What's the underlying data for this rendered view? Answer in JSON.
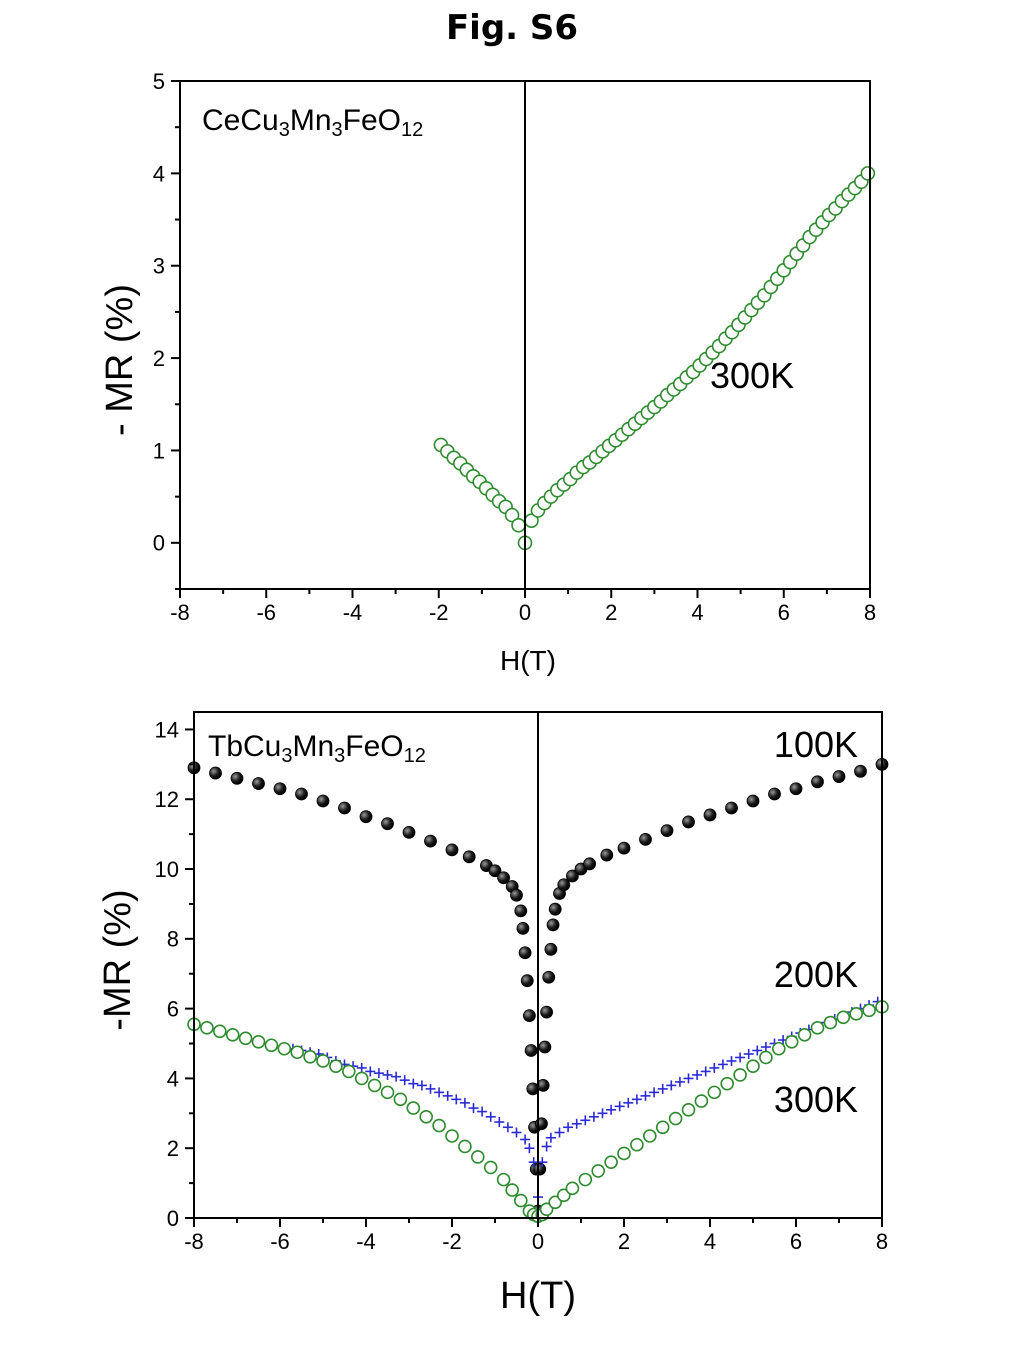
{
  "figure": {
    "title": "Fig. S6"
  },
  "chart_data": [
    {
      "type": "scatter",
      "xlabel": "H(T)",
      "ylabel": "- MR (%)",
      "xlim": [
        -8,
        8
      ],
      "ylim": [
        -0.5,
        5
      ],
      "xticks": [
        "-8",
        "-6",
        "-4",
        "-2",
        "0",
        "2",
        "4",
        "6",
        "8"
      ],
      "yticks": [
        "0",
        "1",
        "2",
        "3",
        "4",
        "5"
      ],
      "sample": {
        "base": "CeCu",
        "s1": "3",
        "mid1": "Mn",
        "s2": "3",
        "mid2": "FeO",
        "s3": "12"
      },
      "annotations": [
        "300K"
      ],
      "colors": {
        "green": "#2e8b2e"
      },
      "series": [
        {
          "label": "300K",
          "marker": "open-circle",
          "color": "#2e8b2e",
          "x": [
            -1.95,
            -1.8,
            -1.65,
            -1.5,
            -1.35,
            -1.2,
            -1.05,
            -0.9,
            -0.75,
            -0.6,
            -0.45,
            -0.3,
            -0.15,
            0,
            0.15,
            0.3,
            0.45,
            0.6,
            0.75,
            0.9,
            1.05,
            1.2,
            1.35,
            1.5,
            1.65,
            1.8,
            1.95,
            2.1,
            2.25,
            2.4,
            2.55,
            2.7,
            2.85,
            3.0,
            3.15,
            3.3,
            3.45,
            3.6,
            3.75,
            3.9,
            4.05,
            4.2,
            4.35,
            4.5,
            4.65,
            4.8,
            4.95,
            5.1,
            5.25,
            5.4,
            5.55,
            5.7,
            5.85,
            6.0,
            6.15,
            6.3,
            6.45,
            6.6,
            6.75,
            6.9,
            7.05,
            7.2,
            7.35,
            7.5,
            7.65,
            7.8,
            7.95
          ],
          "y": [
            1.06,
            0.99,
            0.92,
            0.86,
            0.79,
            0.72,
            0.66,
            0.59,
            0.52,
            0.45,
            0.39,
            0.3,
            0.19,
            0.0,
            0.24,
            0.35,
            0.43,
            0.5,
            0.57,
            0.63,
            0.69,
            0.76,
            0.82,
            0.87,
            0.93,
            0.99,
            1.05,
            1.11,
            1.17,
            1.23,
            1.29,
            1.35,
            1.41,
            1.47,
            1.53,
            1.6,
            1.66,
            1.72,
            1.79,
            1.85,
            1.92,
            1.99,
            2.06,
            2.13,
            2.21,
            2.28,
            2.36,
            2.44,
            2.52,
            2.6,
            2.68,
            2.77,
            2.86,
            2.95,
            3.04,
            3.13,
            3.22,
            3.31,
            3.39,
            3.47,
            3.55,
            3.62,
            3.7,
            3.77,
            3.84,
            3.91,
            4.0
          ]
        }
      ]
    },
    {
      "type": "scatter",
      "xlabel": "H(T)",
      "ylabel": "-MR (%)",
      "xlim": [
        -8,
        8
      ],
      "ylim": [
        0,
        14.5
      ],
      "xticks": [
        "-8",
        "-6",
        "-4",
        "-2",
        "0",
        "2",
        "4",
        "6",
        "8"
      ],
      "yticks": [
        "0",
        "2",
        "4",
        "6",
        "8",
        "10",
        "12",
        "14"
      ],
      "sample": {
        "base": "TbCu",
        "s1": "3",
        "mid1": "Mn",
        "s2": "3",
        "mid2": "FeO",
        "s3": "12"
      },
      "annotations": [
        "100K",
        "200K",
        "300K"
      ],
      "colors": {
        "black": "#111111",
        "blue": "#2b2bd6",
        "green": "#2e8b2e"
      },
      "series": [
        {
          "label": "100K",
          "marker": "filled-sphere",
          "color": "#111111",
          "x": [
            -8,
            -7.5,
            -7,
            -6.5,
            -6,
            -5.5,
            -5,
            -4.5,
            -4,
            -3.5,
            -3,
            -2.5,
            -2,
            -1.6,
            -1.2,
            -1,
            -0.8,
            -0.6,
            -0.5,
            -0.4,
            -0.35,
            -0.3,
            -0.25,
            -0.2,
            -0.16,
            -0.12,
            -0.08,
            -0.04,
            0,
            0.04,
            0.08,
            0.12,
            0.16,
            0.2,
            0.25,
            0.3,
            0.35,
            0.4,
            0.5,
            0.6,
            0.8,
            1,
            1.2,
            1.6,
            2,
            2.5,
            3,
            3.5,
            4,
            4.5,
            5,
            5.5,
            6,
            6.5,
            7,
            7.5,
            8
          ],
          "y": [
            12.9,
            12.75,
            12.6,
            12.45,
            12.3,
            12.15,
            11.95,
            11.75,
            11.5,
            11.3,
            11.05,
            10.8,
            10.55,
            10.35,
            10.1,
            9.95,
            9.75,
            9.5,
            9.25,
            8.8,
            8.3,
            7.6,
            6.8,
            5.8,
            4.8,
            3.7,
            2.6,
            1.4,
            0.2,
            1.4,
            2.7,
            3.8,
            4.9,
            5.9,
            6.9,
            7.7,
            8.4,
            8.85,
            9.3,
            9.55,
            9.8,
            10.0,
            10.15,
            10.4,
            10.6,
            10.85,
            11.1,
            11.35,
            11.55,
            11.75,
            11.95,
            12.15,
            12.3,
            12.5,
            12.65,
            12.8,
            13.0
          ]
        },
        {
          "label": "200K",
          "marker": "plus",
          "color": "#2b2bd6",
          "x": [
            -5.7,
            -5.5,
            -5.3,
            -5.1,
            -4.9,
            -4.7,
            -4.5,
            -4.3,
            -4.1,
            -3.9,
            -3.7,
            -3.5,
            -3.3,
            -3.1,
            -2.9,
            -2.7,
            -2.5,
            -2.3,
            -2.1,
            -1.9,
            -1.7,
            -1.5,
            -1.3,
            -1.1,
            -0.9,
            -0.7,
            -0.5,
            -0.3,
            -0.2,
            -0.1,
            0,
            0.1,
            0.2,
            0.3,
            0.5,
            0.7,
            0.9,
            1.1,
            1.3,
            1.5,
            1.7,
            1.9,
            2.1,
            2.3,
            2.5,
            2.7,
            2.9,
            3.1,
            3.3,
            3.5,
            3.7,
            3.9,
            4.1,
            4.3,
            4.5,
            4.7,
            4.9,
            5.1,
            5.3,
            5.5,
            5.7,
            5.9,
            6.1,
            6.3,
            6.5,
            6.7,
            6.9,
            7.1,
            7.3,
            7.5,
            7.7,
            7.9
          ],
          "y": [
            4.85,
            4.8,
            4.75,
            4.7,
            4.6,
            4.5,
            4.4,
            4.35,
            4.3,
            4.2,
            4.15,
            4.1,
            4.05,
            3.95,
            3.85,
            3.8,
            3.7,
            3.6,
            3.5,
            3.4,
            3.3,
            3.15,
            3.05,
            2.9,
            2.75,
            2.6,
            2.45,
            2.25,
            2.0,
            1.6,
            0.6,
            1.6,
            2.05,
            2.3,
            2.45,
            2.6,
            2.7,
            2.8,
            2.9,
            3.0,
            3.1,
            3.2,
            3.3,
            3.4,
            3.5,
            3.6,
            3.7,
            3.8,
            3.9,
            4.0,
            4.1,
            4.2,
            4.3,
            4.4,
            4.5,
            4.6,
            4.7,
            4.8,
            4.9,
            5.0,
            5.1,
            5.2,
            5.3,
            5.4,
            5.5,
            5.6,
            5.7,
            5.8,
            5.9,
            6.0,
            6.1,
            6.2
          ]
        },
        {
          "label": "300K",
          "marker": "open-circle",
          "color": "#2e8b2e",
          "x": [
            -8,
            -7.7,
            -7.4,
            -7.1,
            -6.8,
            -6.5,
            -6.2,
            -5.9,
            -5.6,
            -5.3,
            -5,
            -4.7,
            -4.4,
            -4.1,
            -3.8,
            -3.5,
            -3.2,
            -2.9,
            -2.6,
            -2.3,
            -2,
            -1.7,
            -1.4,
            -1.1,
            -0.8,
            -0.6,
            -0.4,
            -0.2,
            -0.1,
            0,
            0.1,
            0.2,
            0.4,
            0.6,
            0.8,
            1.1,
            1.4,
            1.7,
            2,
            2.3,
            2.6,
            2.9,
            3.2,
            3.5,
            3.8,
            4.1,
            4.4,
            4.7,
            5,
            5.3,
            5.6,
            5.9,
            6.2,
            6.5,
            6.8,
            7.1,
            7.4,
            7.7,
            8
          ],
          "y": [
            5.55,
            5.45,
            5.35,
            5.25,
            5.15,
            5.05,
            4.95,
            4.85,
            4.75,
            4.62,
            4.5,
            4.35,
            4.2,
            4.0,
            3.8,
            3.6,
            3.4,
            3.15,
            2.9,
            2.65,
            2.35,
            2.05,
            1.75,
            1.45,
            1.1,
            0.8,
            0.5,
            0.2,
            0.1,
            0.05,
            0.1,
            0.25,
            0.45,
            0.65,
            0.85,
            1.1,
            1.35,
            1.6,
            1.85,
            2.1,
            2.35,
            2.6,
            2.85,
            3.1,
            3.35,
            3.6,
            3.85,
            4.1,
            4.35,
            4.6,
            4.85,
            5.05,
            5.25,
            5.45,
            5.6,
            5.75,
            5.85,
            5.95,
            6.05
          ]
        }
      ]
    }
  ]
}
